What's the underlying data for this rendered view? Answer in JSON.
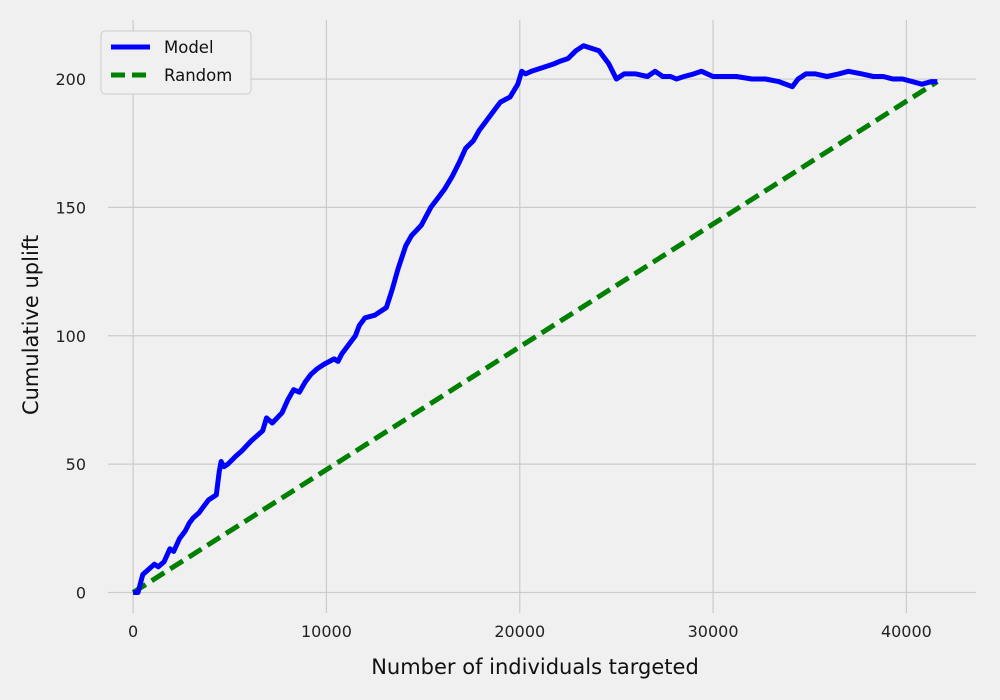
{
  "chart_data": {
    "type": "line",
    "xlabel": "Number of individuals targeted",
    "ylabel": "Cumulative uplift",
    "xlim": [
      -1300,
      43600
    ],
    "ylim": [
      -8,
      223
    ],
    "xticks": [
      0,
      10000,
      20000,
      30000,
      40000
    ],
    "yticks": [
      0,
      50,
      100,
      150,
      200
    ],
    "grid": true,
    "legend_position": "top-left",
    "series": [
      {
        "name": "Model",
        "color": "#0000ff",
        "style": "solid",
        "x": [
          0,
          250,
          500,
          800,
          1100,
          1300,
          1600,
          1900,
          2100,
          2400,
          2700,
          2900,
          3100,
          3400,
          3600,
          3900,
          4300,
          4450,
          4550,
          4700,
          4900,
          5300,
          5600,
          6100,
          6700,
          6900,
          7200,
          7700,
          8000,
          8300,
          8600,
          8900,
          9200,
          9500,
          9900,
          10400,
          10600,
          10800,
          11100,
          11500,
          11700,
          12000,
          12500,
          13100,
          13400,
          13700,
          14100,
          14400,
          14900,
          15400,
          15800,
          16100,
          16500,
          16900,
          17200,
          17600,
          17900,
          18300,
          18700,
          19000,
          19500,
          19900,
          20100,
          20300,
          20600,
          21000,
          21400,
          21800,
          22100,
          22500,
          22900,
          23300,
          23700,
          24100,
          24600,
          25000,
          25400,
          26000,
          26600,
          27000,
          27400,
          27800,
          28100,
          28500,
          29000,
          29400,
          30000,
          30600,
          31200,
          32000,
          32700,
          33400,
          34100,
          34400,
          34800,
          35300,
          35900,
          36500,
          37000,
          37700,
          38300,
          38800,
          39300,
          39800,
          40300,
          40800,
          41300,
          41600
        ],
        "y": [
          0,
          0,
          7,
          9,
          11,
          10,
          12,
          17,
          16,
          21,
          24,
          27,
          29,
          31,
          33,
          36,
          38,
          47,
          51,
          49,
          50,
          53,
          55,
          59,
          63,
          68,
          66,
          70,
          75,
          79,
          78,
          82,
          85,
          87,
          89,
          91,
          90,
          93,
          96,
          100,
          104,
          107,
          108,
          111,
          118,
          126,
          135,
          139,
          143,
          150,
          154,
          157,
          162,
          168,
          173,
          176,
          180,
          184,
          188,
          191,
          193,
          198,
          203,
          202,
          203,
          204,
          205,
          206,
          207,
          208,
          211,
          213,
          212,
          211,
          206,
          200,
          202,
          202,
          201,
          203,
          201,
          201,
          200,
          201,
          202,
          203,
          201,
          201,
          201,
          200,
          200,
          199,
          197,
          200,
          202,
          202,
          201,
          202,
          203,
          202,
          201,
          201,
          200,
          200,
          199,
          198,
          199,
          199
        ]
      },
      {
        "name": "Random",
        "color": "#008000",
        "style": "dashed",
        "x": [
          0,
          41600
        ],
        "y": [
          0,
          199
        ]
      }
    ]
  }
}
